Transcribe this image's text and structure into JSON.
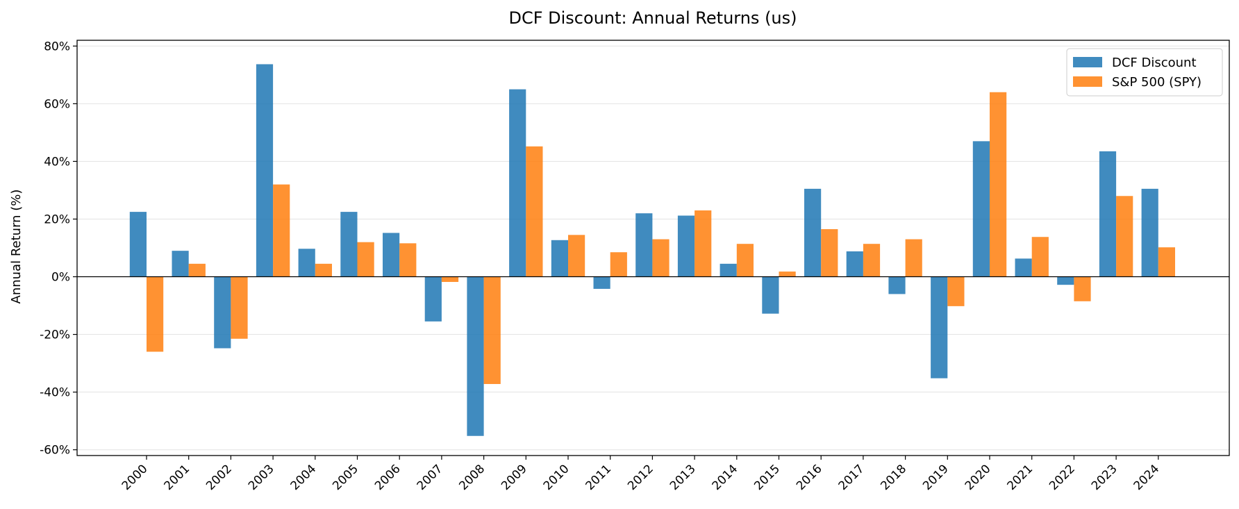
{
  "chart_data": {
    "type": "bar",
    "title": "DCF Discount: Annual Returns (us)",
    "xlabel": "",
    "ylabel": "Annual Return (%)",
    "ylim": [
      -62,
      82
    ],
    "yticks": [
      -60,
      -40,
      -20,
      0,
      20,
      40,
      60,
      80
    ],
    "ytick_format": "{v}%",
    "grid": "horizontal",
    "legend": "top-right",
    "categories": [
      "2000",
      "2001",
      "2002",
      "2003",
      "2004",
      "2005",
      "2006",
      "2007",
      "2008",
      "2009",
      "2010",
      "2011",
      "2012",
      "2013",
      "2014",
      "2015",
      "2016",
      "2017",
      "2018",
      "2019",
      "2020",
      "2021",
      "2022",
      "2023",
      "2024"
    ],
    "series": [
      {
        "name": "DCF Discount",
        "color": "#1f77b4",
        "values": [
          22.5,
          9.0,
          -24.8,
          73.7,
          9.7,
          22.5,
          15.2,
          -15.5,
          -55.2,
          65.0,
          12.7,
          -4.2,
          22.0,
          21.2,
          4.5,
          -12.8,
          30.5,
          8.8,
          -6.0,
          -35.2,
          47.0,
          6.3,
          -2.8,
          43.5,
          30.5
        ]
      },
      {
        "name": "S&P 500 (SPY)",
        "color": "#ff7f0e",
        "values": [
          -26.0,
          4.5,
          -21.5,
          32.0,
          4.5,
          12.0,
          11.6,
          -1.8,
          -37.2,
          45.2,
          14.5,
          8.5,
          13.0,
          23.0,
          11.4,
          1.8,
          16.5,
          11.4,
          13.0,
          -10.2,
          64.0,
          13.8,
          -8.5,
          28.0,
          10.2
        ]
      }
    ]
  }
}
